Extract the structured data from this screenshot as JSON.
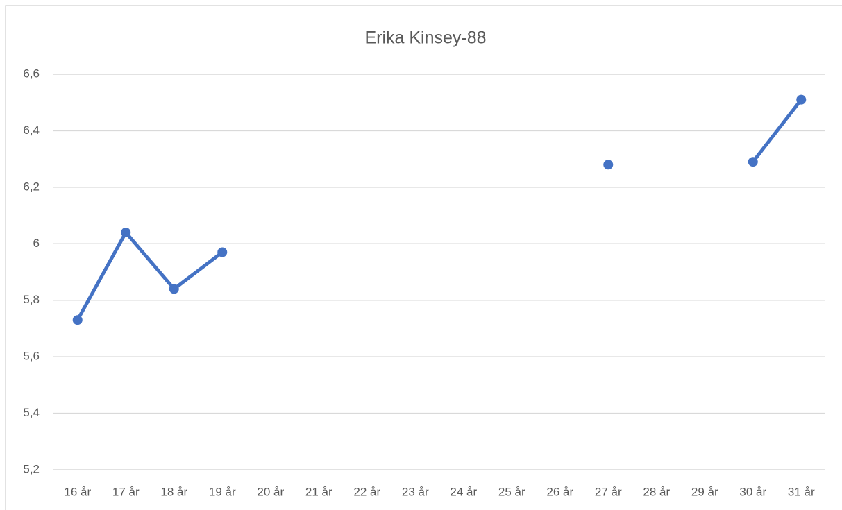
{
  "chart_data": {
    "type": "line",
    "title": "Erika Kinsey-88",
    "categories": [
      "16 år",
      "17 år",
      "18 år",
      "19 år",
      "20 år",
      "21 år",
      "22 år",
      "23 år",
      "24 år",
      "25 år",
      "26 år",
      "27 år",
      "28 år",
      "29 år",
      "30 år",
      "31 år"
    ],
    "values": [
      5.73,
      6.04,
      5.84,
      5.97,
      null,
      null,
      null,
      null,
      null,
      null,
      null,
      6.28,
      null,
      null,
      6.29,
      6.51
    ],
    "color": "#4472c4",
    "ylim": [
      5.2,
      6.6
    ],
    "yticks": [
      {
        "value": 5.2,
        "label": "5,2"
      },
      {
        "value": 5.4,
        "label": "5,4"
      },
      {
        "value": 5.6,
        "label": "5,6"
      },
      {
        "value": 5.8,
        "label": "5,8"
      },
      6,
      {
        "value": 6.2,
        "label": "6,2"
      },
      {
        "value": 6.4,
        "label": "6,4"
      },
      {
        "value": 6.6,
        "label": "6,6"
      }
    ],
    "grid": true
  }
}
